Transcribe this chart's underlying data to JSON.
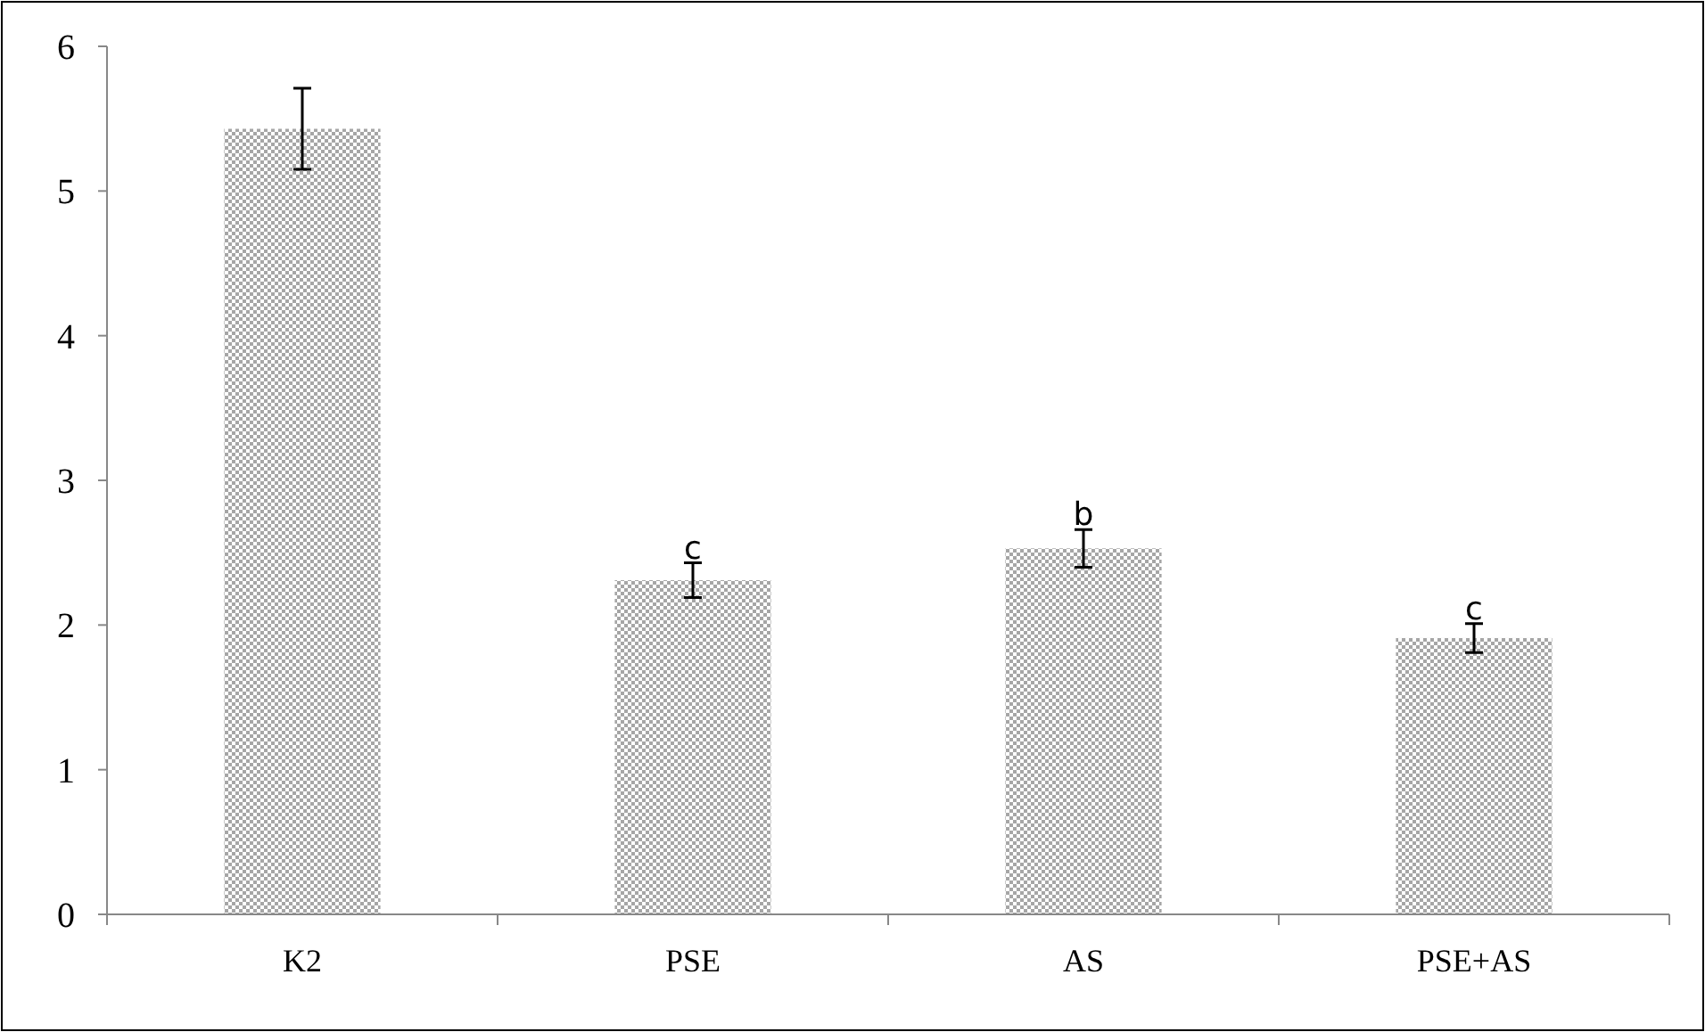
{
  "chart_data": {
    "type": "bar",
    "categories": [
      "K2",
      "PSE",
      "AS",
      "PSE+AS"
    ],
    "values": [
      5.43,
      2.31,
      2.53,
      1.91
    ],
    "errors": [
      0.28,
      0.12,
      0.13,
      0.1
    ],
    "color": "#a6a6a6",
    "ylim": [
      0,
      6
    ],
    "yticks": [
      0,
      1,
      2,
      3,
      4,
      5,
      6
    ],
    "grid": false,
    "annotations": [
      {
        "text": "c",
        "x": "PSE",
        "y": 2.46
      },
      {
        "text": "b",
        "x": "AS",
        "y": 2.69
      },
      {
        "text": "c",
        "x": "PSE+AS",
        "y": 2.04
      }
    ]
  }
}
